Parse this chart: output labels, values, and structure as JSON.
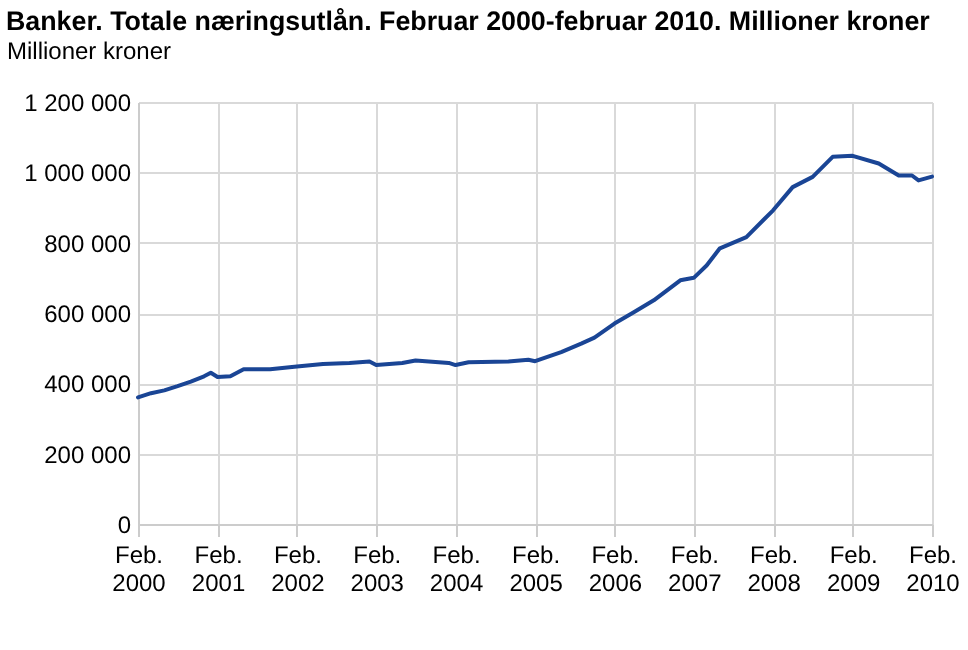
{
  "chart_data": {
    "type": "line",
    "title": "Banker. Totale næringsutlån. Februar 2000-februar 2010. Millioner kroner",
    "ylabel": "Millioner kroner",
    "x": [
      "2000-02",
      "2000-04",
      "2000-06",
      "2000-08",
      "2000-10",
      "2000-12",
      "2001-01",
      "2001-02",
      "2001-04",
      "2001-06",
      "2001-10",
      "2002-02",
      "2002-06",
      "2002-10",
      "2003-01",
      "2003-02",
      "2003-06",
      "2003-08",
      "2003-10",
      "2004-01",
      "2004-02",
      "2004-04",
      "2004-10",
      "2005-01",
      "2005-02",
      "2005-06",
      "2005-09",
      "2005-11",
      "2006-02",
      "2006-05",
      "2006-08",
      "2006-12",
      "2007-02",
      "2007-04",
      "2007-06",
      "2007-10",
      "2008-02",
      "2008-05",
      "2008-08",
      "2008-11",
      "2009-02",
      "2009-06",
      "2009-09",
      "2009-11",
      "2009-12",
      "2010-02"
    ],
    "series": [
      {
        "color": "#1a4595",
        "values": [
          360000,
          372000,
          380000,
          392000,
          405000,
          420000,
          430000,
          418000,
          420000,
          440000,
          440000,
          448000,
          455000,
          458000,
          462000,
          452000,
          458000,
          465000,
          462000,
          458000,
          452000,
          460000,
          462000,
          467000,
          463000,
          489000,
          513000,
          530000,
          570000,
          602000,
          636000,
          693000,
          700000,
          735000,
          784000,
          816000,
          892000,
          958000,
          987000,
          1044000,
          1047000,
          1025000,
          991000,
          991000,
          977000,
          988000
        ]
      }
    ],
    "xlim": [
      "2000-02",
      "2010-02"
    ],
    "xticks": [
      {
        "value": "2000-02",
        "label": "Feb. 2000"
      },
      {
        "value": "2001-02",
        "label": "Feb. 2001"
      },
      {
        "value": "2002-02",
        "label": "Feb. 2002"
      },
      {
        "value": "2003-02",
        "label": "Feb. 2003"
      },
      {
        "value": "2004-02",
        "label": "Feb. 2004"
      },
      {
        "value": "2005-02",
        "label": "Feb. 2005"
      },
      {
        "value": "2006-02",
        "label": "Feb. 2006"
      },
      {
        "value": "2007-02",
        "label": "Feb. 2007"
      },
      {
        "value": "2008-02",
        "label": "Feb. 2008"
      },
      {
        "value": "2009-02",
        "label": "Feb. 2009"
      },
      {
        "value": "2010-02",
        "label": "Feb. 2010"
      }
    ],
    "ylim": [
      0,
      1200000
    ],
    "yticks": [
      0,
      {
        "value": 200000,
        "label": "200 000"
      },
      {
        "value": 400000,
        "label": "400 000"
      },
      {
        "value": 600000,
        "label": "600 000"
      },
      {
        "value": 800000,
        "label": "800 000"
      },
      {
        "value": 1000000,
        "label": "1 000 000"
      },
      {
        "value": 1200000,
        "label": "1 200 000"
      }
    ],
    "grid": true,
    "line_style": "solid",
    "marker": "none"
  }
}
